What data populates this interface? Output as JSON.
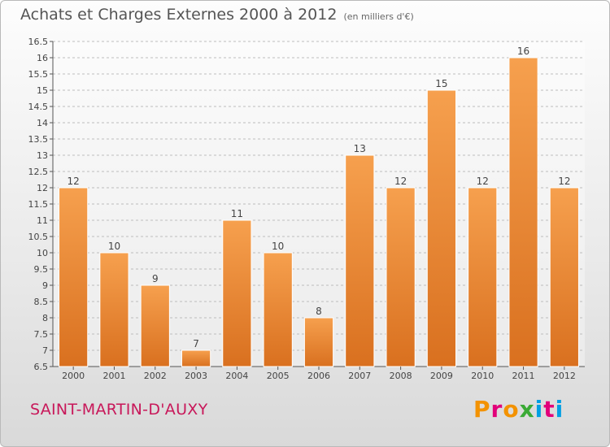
{
  "header": {
    "title": "Achats et Charges Externes 2000 à 2012",
    "unit": "(en milliers d'€)"
  },
  "footer": {
    "place": "SAINT-MARTIN-D'AUXY",
    "logo": "Proxiti",
    "logo_colors": [
      "#f39200",
      "#e2007a",
      "#f39200",
      "#3aaa35",
      "#009fe3",
      "#e2007a",
      "#009fe3"
    ]
  },
  "colors": {
    "bar_top": "#f6a04e",
    "bar_bottom": "#d9701f",
    "bar_edge": "#ffffff",
    "grid": "#bdbdbd"
  },
  "chart_data": {
    "type": "bar",
    "categories": [
      "2000",
      "2001",
      "2002",
      "2003",
      "2004",
      "2005",
      "2006",
      "2007",
      "2008",
      "2009",
      "2010",
      "2011",
      "2012"
    ],
    "values": [
      12,
      10,
      9,
      7,
      11,
      10,
      8,
      13,
      12,
      15,
      12,
      16,
      12
    ],
    "ylim": [
      6.5,
      16.5
    ],
    "yticks": [
      "6.5",
      "7",
      "7.5",
      "8",
      "8.5",
      "9",
      "9.5",
      "10",
      "10.5",
      "11",
      "11.5",
      "12",
      "12.5",
      "13",
      "13.5",
      "14",
      "14.5",
      "15",
      "15.5",
      "16",
      "16.5"
    ],
    "grid": true
  }
}
